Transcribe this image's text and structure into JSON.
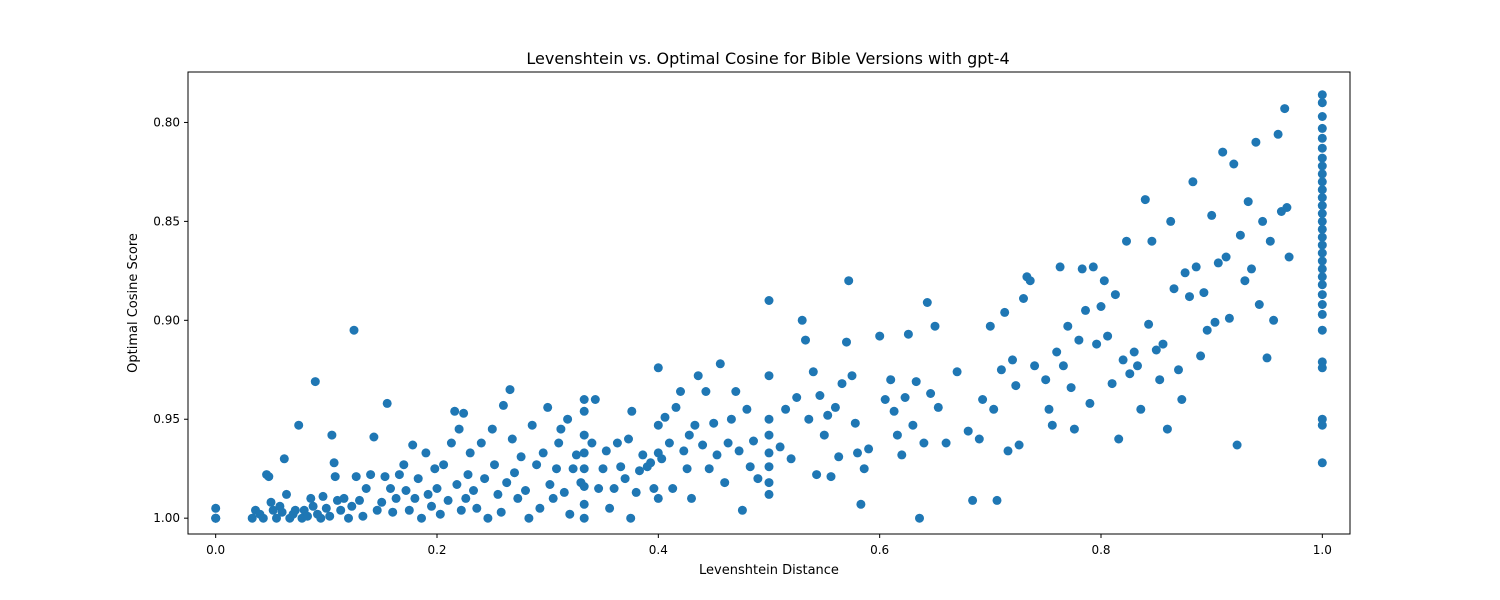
{
  "chart_data": {
    "type": "scatter",
    "title": "Levenshtein vs. Optimal Cosine for Bible Versions with gpt-4",
    "xlabel": "Levenshtein Distance",
    "ylabel": "Optimal Cosine Score",
    "xlim": [
      -0.025,
      1.025
    ],
    "ylim": [
      1.008,
      0.7745
    ],
    "y_inverted": true,
    "x_ticks": [
      0.0,
      0.2,
      0.4,
      0.6,
      0.8,
      1.0
    ],
    "x_tick_labels": [
      "0.0",
      "0.2",
      "0.4",
      "0.6",
      "0.8",
      "1.0"
    ],
    "y_ticks": [
      0.8,
      0.85,
      0.9,
      0.95,
      1.0
    ],
    "y_tick_labels": [
      "0.80",
      "0.85",
      "0.90",
      "0.95",
      "1.00"
    ],
    "grid": false,
    "legend": "none",
    "marker_color": "#1f77b4",
    "points": [
      [
        0.0,
        1.0
      ],
      [
        0.0,
        1.0
      ],
      [
        0.0,
        1.0
      ],
      [
        0.0,
        0.995
      ],
      [
        0.033,
        1.0
      ],
      [
        0.036,
        0.996
      ],
      [
        0.04,
        0.998
      ],
      [
        0.043,
        1.0
      ],
      [
        0.046,
        0.978
      ],
      [
        0.048,
        0.979
      ],
      [
        0.05,
        0.992
      ],
      [
        0.052,
        0.996
      ],
      [
        0.055,
        1.0
      ],
      [
        0.058,
        0.994
      ],
      [
        0.06,
        0.997
      ],
      [
        0.062,
        0.97
      ],
      [
        0.064,
        0.988
      ],
      [
        0.067,
        1.0
      ],
      [
        0.07,
        0.998
      ],
      [
        0.072,
        0.996
      ],
      [
        0.075,
        0.953
      ],
      [
        0.078,
        1.0
      ],
      [
        0.08,
        0.996
      ],
      [
        0.083,
        0.999
      ],
      [
        0.086,
        0.99
      ],
      [
        0.088,
        0.994
      ],
      [
        0.09,
        0.931
      ],
      [
        0.092,
        0.998
      ],
      [
        0.095,
        1.0
      ],
      [
        0.097,
        0.989
      ],
      [
        0.1,
        0.995
      ],
      [
        0.103,
        0.999
      ],
      [
        0.105,
        0.958
      ],
      [
        0.107,
        0.972
      ],
      [
        0.108,
        0.979
      ],
      [
        0.11,
        0.991
      ],
      [
        0.113,
        0.996
      ],
      [
        0.116,
        0.99
      ],
      [
        0.12,
        1.0
      ],
      [
        0.123,
        0.994
      ],
      [
        0.125,
        0.905
      ],
      [
        0.127,
        0.979
      ],
      [
        0.13,
        0.991
      ],
      [
        0.133,
        0.999
      ],
      [
        0.136,
        0.985
      ],
      [
        0.14,
        0.978
      ],
      [
        0.143,
        0.959
      ],
      [
        0.146,
        0.996
      ],
      [
        0.15,
        0.992
      ],
      [
        0.153,
        0.979
      ],
      [
        0.155,
        0.942
      ],
      [
        0.158,
        0.985
      ],
      [
        0.16,
        0.997
      ],
      [
        0.163,
        0.99
      ],
      [
        0.166,
        0.978
      ],
      [
        0.17,
        0.973
      ],
      [
        0.172,
        0.986
      ],
      [
        0.175,
        0.996
      ],
      [
        0.178,
        0.963
      ],
      [
        0.18,
        0.99
      ],
      [
        0.183,
        0.98
      ],
      [
        0.186,
        1.0
      ],
      [
        0.19,
        0.967
      ],
      [
        0.192,
        0.988
      ],
      [
        0.195,
        0.994
      ],
      [
        0.198,
        0.975
      ],
      [
        0.2,
        0.985
      ],
      [
        0.203,
        0.998
      ],
      [
        0.206,
        0.973
      ],
      [
        0.21,
        0.991
      ],
      [
        0.213,
        0.962
      ],
      [
        0.216,
        0.946
      ],
      [
        0.218,
        0.983
      ],
      [
        0.22,
        0.955
      ],
      [
        0.222,
        0.996
      ],
      [
        0.224,
        0.947
      ],
      [
        0.226,
        0.99
      ],
      [
        0.228,
        0.978
      ],
      [
        0.23,
        0.967
      ],
      [
        0.233,
        0.986
      ],
      [
        0.236,
        0.995
      ],
      [
        0.24,
        0.962
      ],
      [
        0.243,
        0.98
      ],
      [
        0.246,
        1.0
      ],
      [
        0.25,
        0.955
      ],
      [
        0.252,
        0.973
      ],
      [
        0.255,
        0.988
      ],
      [
        0.258,
        0.997
      ],
      [
        0.26,
        0.943
      ],
      [
        0.263,
        0.982
      ],
      [
        0.266,
        0.935
      ],
      [
        0.268,
        0.96
      ],
      [
        0.27,
        0.977
      ],
      [
        0.273,
        0.99
      ],
      [
        0.276,
        0.969
      ],
      [
        0.28,
        0.986
      ],
      [
        0.283,
        1.0
      ],
      [
        0.286,
        0.953
      ],
      [
        0.29,
        0.973
      ],
      [
        0.293,
        0.995
      ],
      [
        0.296,
        0.967
      ],
      [
        0.3,
        0.944
      ],
      [
        0.302,
        0.983
      ],
      [
        0.305,
        0.99
      ],
      [
        0.308,
        0.975
      ],
      [
        0.31,
        0.962
      ],
      [
        0.312,
        0.955
      ],
      [
        0.315,
        0.987
      ],
      [
        0.318,
        0.95
      ],
      [
        0.32,
        0.998
      ],
      [
        0.323,
        0.975
      ],
      [
        0.326,
        0.968
      ],
      [
        0.33,
        0.982
      ],
      [
        0.333,
        0.94
      ],
      [
        0.333,
        0.946
      ],
      [
        0.333,
        0.958
      ],
      [
        0.333,
        0.967
      ],
      [
        0.333,
        0.975
      ],
      [
        0.333,
        0.984
      ],
      [
        0.333,
        0.993
      ],
      [
        0.333,
        1.0
      ],
      [
        0.34,
        0.962
      ],
      [
        0.343,
        0.94
      ],
      [
        0.346,
        0.985
      ],
      [
        0.35,
        0.975
      ],
      [
        0.353,
        0.966
      ],
      [
        0.356,
        0.995
      ],
      [
        0.36,
        0.985
      ],
      [
        0.363,
        0.962
      ],
      [
        0.366,
        0.974
      ],
      [
        0.37,
        0.98
      ],
      [
        0.373,
        0.96
      ],
      [
        0.375,
        1.0
      ],
      [
        0.376,
        0.946
      ],
      [
        0.38,
        0.987
      ],
      [
        0.383,
        0.976
      ],
      [
        0.386,
        0.968
      ],
      [
        0.39,
        0.974
      ],
      [
        0.393,
        0.972
      ],
      [
        0.396,
        0.985
      ],
      [
        0.4,
        0.924
      ],
      [
        0.4,
        0.953
      ],
      [
        0.4,
        0.967
      ],
      [
        0.4,
        0.99
      ],
      [
        0.403,
        0.97
      ],
      [
        0.406,
        0.949
      ],
      [
        0.41,
        0.962
      ],
      [
        0.413,
        0.985
      ],
      [
        0.416,
        0.944
      ],
      [
        0.42,
        0.936
      ],
      [
        0.423,
        0.966
      ],
      [
        0.426,
        0.975
      ],
      [
        0.428,
        0.958
      ],
      [
        0.43,
        0.99
      ],
      [
        0.433,
        0.953
      ],
      [
        0.436,
        0.928
      ],
      [
        0.44,
        0.963
      ],
      [
        0.443,
        0.936
      ],
      [
        0.446,
        0.975
      ],
      [
        0.45,
        0.952
      ],
      [
        0.453,
        0.968
      ],
      [
        0.456,
        0.922
      ],
      [
        0.46,
        0.982
      ],
      [
        0.463,
        0.962
      ],
      [
        0.466,
        0.95
      ],
      [
        0.47,
        0.936
      ],
      [
        0.473,
        0.966
      ],
      [
        0.476,
        0.996
      ],
      [
        0.48,
        0.945
      ],
      [
        0.483,
        0.974
      ],
      [
        0.486,
        0.961
      ],
      [
        0.49,
        0.98
      ],
      [
        0.5,
        0.928
      ],
      [
        0.5,
        0.95
      ],
      [
        0.5,
        0.958
      ],
      [
        0.5,
        0.967
      ],
      [
        0.5,
        0.974
      ],
      [
        0.5,
        0.982
      ],
      [
        0.5,
        0.988
      ],
      [
        0.5,
        0.89
      ],
      [
        0.51,
        0.964
      ],
      [
        0.515,
        0.945
      ],
      [
        0.52,
        0.97
      ],
      [
        0.525,
        0.939
      ],
      [
        0.53,
        0.9
      ],
      [
        0.533,
        0.91
      ],
      [
        0.536,
        0.95
      ],
      [
        0.54,
        0.926
      ],
      [
        0.543,
        0.978
      ],
      [
        0.546,
        0.938
      ],
      [
        0.55,
        0.958
      ],
      [
        0.553,
        0.948
      ],
      [
        0.556,
        0.979
      ],
      [
        0.56,
        0.944
      ],
      [
        0.563,
        0.969
      ],
      [
        0.566,
        0.932
      ],
      [
        0.57,
        0.911
      ],
      [
        0.572,
        0.88
      ],
      [
        0.575,
        0.928
      ],
      [
        0.578,
        0.952
      ],
      [
        0.58,
        0.967
      ],
      [
        0.583,
        0.993
      ],
      [
        0.586,
        0.975
      ],
      [
        0.59,
        0.965
      ],
      [
        0.6,
        0.908
      ],
      [
        0.605,
        0.94
      ],
      [
        0.61,
        0.93
      ],
      [
        0.613,
        0.946
      ],
      [
        0.616,
        0.958
      ],
      [
        0.62,
        0.968
      ],
      [
        0.623,
        0.939
      ],
      [
        0.626,
        0.907
      ],
      [
        0.63,
        0.953
      ],
      [
        0.633,
        0.931
      ],
      [
        0.636,
        1.0
      ],
      [
        0.64,
        0.962
      ],
      [
        0.643,
        0.891
      ],
      [
        0.646,
        0.937
      ],
      [
        0.65,
        0.903
      ],
      [
        0.653,
        0.944
      ],
      [
        0.66,
        0.962
      ],
      [
        0.67,
        0.926
      ],
      [
        0.68,
        0.956
      ],
      [
        0.684,
        0.991
      ],
      [
        0.69,
        0.96
      ],
      [
        0.693,
        0.94
      ],
      [
        0.7,
        0.903
      ],
      [
        0.703,
        0.945
      ],
      [
        0.706,
        0.991
      ],
      [
        0.71,
        0.925
      ],
      [
        0.713,
        0.896
      ],
      [
        0.716,
        0.966
      ],
      [
        0.72,
        0.92
      ],
      [
        0.723,
        0.933
      ],
      [
        0.726,
        0.963
      ],
      [
        0.73,
        0.889
      ],
      [
        0.733,
        0.878
      ],
      [
        0.736,
        0.88
      ],
      [
        0.74,
        0.923
      ],
      [
        0.75,
        0.93
      ],
      [
        0.753,
        0.945
      ],
      [
        0.756,
        0.953
      ],
      [
        0.76,
        0.916
      ],
      [
        0.763,
        0.873
      ],
      [
        0.766,
        0.923
      ],
      [
        0.77,
        0.903
      ],
      [
        0.773,
        0.934
      ],
      [
        0.776,
        0.955
      ],
      [
        0.78,
        0.91
      ],
      [
        0.783,
        0.874
      ],
      [
        0.786,
        0.895
      ],
      [
        0.79,
        0.942
      ],
      [
        0.793,
        0.873
      ],
      [
        0.796,
        0.912
      ],
      [
        0.8,
        0.893
      ],
      [
        0.803,
        0.88
      ],
      [
        0.806,
        0.908
      ],
      [
        0.81,
        0.932
      ],
      [
        0.813,
        0.887
      ],
      [
        0.816,
        0.96
      ],
      [
        0.82,
        0.92
      ],
      [
        0.823,
        0.86
      ],
      [
        0.826,
        0.927
      ],
      [
        0.83,
        0.916
      ],
      [
        0.833,
        0.923
      ],
      [
        0.836,
        0.945
      ],
      [
        0.84,
        0.839
      ],
      [
        0.843,
        0.902
      ],
      [
        0.846,
        0.86
      ],
      [
        0.85,
        0.915
      ],
      [
        0.853,
        0.93
      ],
      [
        0.856,
        0.912
      ],
      [
        0.86,
        0.955
      ],
      [
        0.863,
        0.85
      ],
      [
        0.866,
        0.884
      ],
      [
        0.87,
        0.925
      ],
      [
        0.873,
        0.94
      ],
      [
        0.876,
        0.876
      ],
      [
        0.88,
        0.888
      ],
      [
        0.883,
        0.83
      ],
      [
        0.886,
        0.873
      ],
      [
        0.89,
        0.918
      ],
      [
        0.893,
        0.886
      ],
      [
        0.896,
        0.905
      ],
      [
        0.9,
        0.847
      ],
      [
        0.903,
        0.901
      ],
      [
        0.906,
        0.871
      ],
      [
        0.91,
        0.815
      ],
      [
        0.913,
        0.868
      ],
      [
        0.916,
        0.899
      ],
      [
        0.92,
        0.821
      ],
      [
        0.923,
        0.963
      ],
      [
        0.926,
        0.857
      ],
      [
        0.93,
        0.88
      ],
      [
        0.933,
        0.84
      ],
      [
        0.936,
        0.874
      ],
      [
        0.94,
        0.81
      ],
      [
        0.943,
        0.892
      ],
      [
        0.946,
        0.85
      ],
      [
        0.95,
        0.919
      ],
      [
        0.953,
        0.86
      ],
      [
        0.956,
        0.9
      ],
      [
        0.96,
        0.806
      ],
      [
        0.963,
        0.845
      ],
      [
        0.966,
        0.793
      ],
      [
        0.968,
        0.843
      ],
      [
        0.97,
        0.868
      ],
      [
        1.0,
        0.786
      ],
      [
        1.0,
        0.79
      ],
      [
        1.0,
        0.797
      ],
      [
        1.0,
        0.803
      ],
      [
        1.0,
        0.808
      ],
      [
        1.0,
        0.813
      ],
      [
        1.0,
        0.818
      ],
      [
        1.0,
        0.822
      ],
      [
        1.0,
        0.826
      ],
      [
        1.0,
        0.83
      ],
      [
        1.0,
        0.834
      ],
      [
        1.0,
        0.838
      ],
      [
        1.0,
        0.842
      ],
      [
        1.0,
        0.846
      ],
      [
        1.0,
        0.85
      ],
      [
        1.0,
        0.854
      ],
      [
        1.0,
        0.858
      ],
      [
        1.0,
        0.862
      ],
      [
        1.0,
        0.866
      ],
      [
        1.0,
        0.87
      ],
      [
        1.0,
        0.874
      ],
      [
        1.0,
        0.878
      ],
      [
        1.0,
        0.882
      ],
      [
        1.0,
        0.887
      ],
      [
        1.0,
        0.892
      ],
      [
        1.0,
        0.897
      ],
      [
        1.0,
        0.905
      ],
      [
        1.0,
        0.921
      ],
      [
        1.0,
        0.924
      ],
      [
        1.0,
        0.95
      ],
      [
        1.0,
        0.953
      ],
      [
        1.0,
        0.972
      ]
    ]
  }
}
